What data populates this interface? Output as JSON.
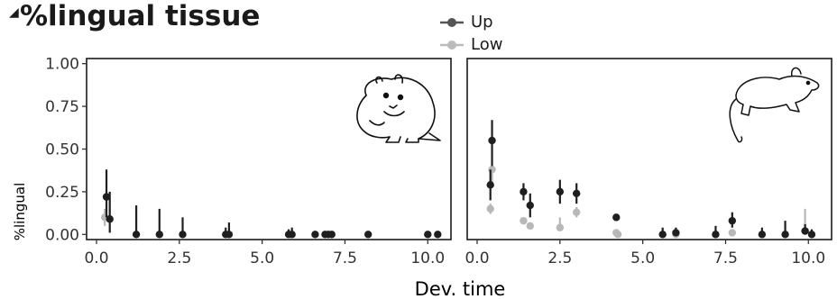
{
  "title": "%lingual tissue",
  "chart_data": {
    "type": "scatter",
    "xlabel": "Dev. time",
    "ylabel": "%lingual",
    "xlim": [
      -0.3,
      10.7
    ],
    "ylim": [
      -0.03,
      1.03
    ],
    "x_ticks": [
      0.0,
      2.5,
      5.0,
      7.5,
      10.0
    ],
    "y_ticks": [
      0.0,
      0.25,
      0.5,
      0.75,
      1.0
    ],
    "x_tick_labels": [
      "0.0",
      "2.5",
      "5.0",
      "7.5",
      "10.0"
    ],
    "y_tick_labels": [
      "0.00",
      "0.25",
      "0.50",
      "0.75",
      "1.00"
    ],
    "grid": false,
    "legend": "top",
    "series_styles": [
      {
        "name": "Up",
        "color": "#1f1f1f"
      },
      {
        "name": "Low",
        "color": "#b8b8b8"
      }
    ],
    "panels": [
      {
        "animal_icon": "hamster-icon",
        "series": [
          {
            "name": "Up",
            "points": [
              {
                "x": 0.3,
                "y": 0.22,
                "lo": 0.1,
                "hi": 0.38
              },
              {
                "x": 0.4,
                "y": 0.09,
                "lo": 0.01,
                "hi": 0.25
              },
              {
                "x": 1.2,
                "y": 0.0,
                "lo": 0.0,
                "hi": 0.17
              },
              {
                "x": 1.9,
                "y": 0.0,
                "lo": 0.0,
                "hi": 0.15
              },
              {
                "x": 2.6,
                "y": 0.0,
                "lo": 0.0,
                "hi": 0.1
              },
              {
                "x": 3.9,
                "y": 0.0,
                "lo": 0.0,
                "hi": 0.04
              },
              {
                "x": 4.0,
                "y": 0.0,
                "lo": 0.0,
                "hi": 0.07
              },
              {
                "x": 5.8,
                "y": 0.0,
                "lo": 0.0,
                "hi": 0.03
              },
              {
                "x": 5.9,
                "y": 0.0,
                "lo": 0.0,
                "hi": 0.04
              },
              {
                "x": 6.6,
                "y": 0.0,
                "lo": 0.0,
                "hi": 0.0
              },
              {
                "x": 6.9,
                "y": 0.0,
                "lo": 0.0,
                "hi": 0.0
              },
              {
                "x": 7.0,
                "y": 0.0,
                "lo": 0.0,
                "hi": 0.0
              },
              {
                "x": 7.1,
                "y": 0.0,
                "lo": 0.0,
                "hi": 0.0
              },
              {
                "x": 8.2,
                "y": 0.0,
                "lo": 0.0,
                "hi": 0.0
              },
              {
                "x": 10.0,
                "y": 0.0,
                "lo": 0.0,
                "hi": 0.0
              },
              {
                "x": 10.3,
                "y": 0.0,
                "lo": 0.0,
                "hi": 0.0
              }
            ]
          },
          {
            "name": "Low",
            "points": [
              {
                "x": 0.25,
                "y": 0.1,
                "lo": 0.05,
                "hi": 0.15
              }
            ]
          }
        ]
      },
      {
        "animal_icon": "mouse-icon",
        "series": [
          {
            "name": "Up",
            "points": [
              {
                "x": 0.4,
                "y": 0.29,
                "lo": 0.2,
                "hi": 0.38
              },
              {
                "x": 0.45,
                "y": 0.55,
                "lo": 0.4,
                "hi": 0.67
              },
              {
                "x": 1.4,
                "y": 0.25,
                "lo": 0.2,
                "hi": 0.3
              },
              {
                "x": 1.6,
                "y": 0.17,
                "lo": 0.1,
                "hi": 0.24
              },
              {
                "x": 2.5,
                "y": 0.25,
                "lo": 0.18,
                "hi": 0.32
              },
              {
                "x": 3.0,
                "y": 0.24,
                "lo": 0.18,
                "hi": 0.3
              },
              {
                "x": 4.2,
                "y": 0.1,
                "lo": 0.09,
                "hi": 0.11
              },
              {
                "x": 5.6,
                "y": 0.0,
                "lo": 0.0,
                "hi": 0.04
              },
              {
                "x": 6.0,
                "y": 0.01,
                "lo": 0.0,
                "hi": 0.04
              },
              {
                "x": 7.2,
                "y": 0.0,
                "lo": 0.0,
                "hi": 0.05
              },
              {
                "x": 7.7,
                "y": 0.08,
                "lo": 0.04,
                "hi": 0.13
              },
              {
                "x": 8.6,
                "y": 0.0,
                "lo": 0.0,
                "hi": 0.04
              },
              {
                "x": 9.3,
                "y": 0.0,
                "lo": 0.0,
                "hi": 0.08
              },
              {
                "x": 9.9,
                "y": 0.02,
                "lo": 0.0,
                "hi": 0.06
              },
              {
                "x": 10.1,
                "y": 0.0,
                "lo": 0.0,
                "hi": 0.03
              }
            ]
          },
          {
            "name": "Low",
            "points": [
              {
                "x": 0.4,
                "y": 0.15,
                "lo": 0.12,
                "hi": 0.18
              },
              {
                "x": 0.45,
                "y": 0.38,
                "lo": 0.3,
                "hi": 0.4
              },
              {
                "x": 1.4,
                "y": 0.08,
                "lo": 0.06,
                "hi": 0.1
              },
              {
                "x": 1.6,
                "y": 0.05,
                "lo": 0.03,
                "hi": 0.07
              },
              {
                "x": 2.5,
                "y": 0.04,
                "lo": 0.02,
                "hi": 0.1
              },
              {
                "x": 3.0,
                "y": 0.13,
                "lo": 0.1,
                "hi": 0.16
              },
              {
                "x": 4.2,
                "y": 0.01,
                "lo": 0.0,
                "hi": 0.03
              },
              {
                "x": 4.25,
                "y": 0.0,
                "lo": 0.0,
                "hi": 0.02
              },
              {
                "x": 5.6,
                "y": 0.0,
                "lo": 0.0,
                "hi": 0.0
              },
              {
                "x": 6.0,
                "y": 0.0,
                "lo": 0.0,
                "hi": 0.0
              },
              {
                "x": 7.2,
                "y": 0.0,
                "lo": 0.0,
                "hi": 0.0
              },
              {
                "x": 7.7,
                "y": 0.01,
                "lo": 0.0,
                "hi": 0.03
              },
              {
                "x": 9.9,
                "y": 0.02,
                "lo": 0.0,
                "hi": 0.15
              }
            ]
          }
        ]
      }
    ]
  }
}
